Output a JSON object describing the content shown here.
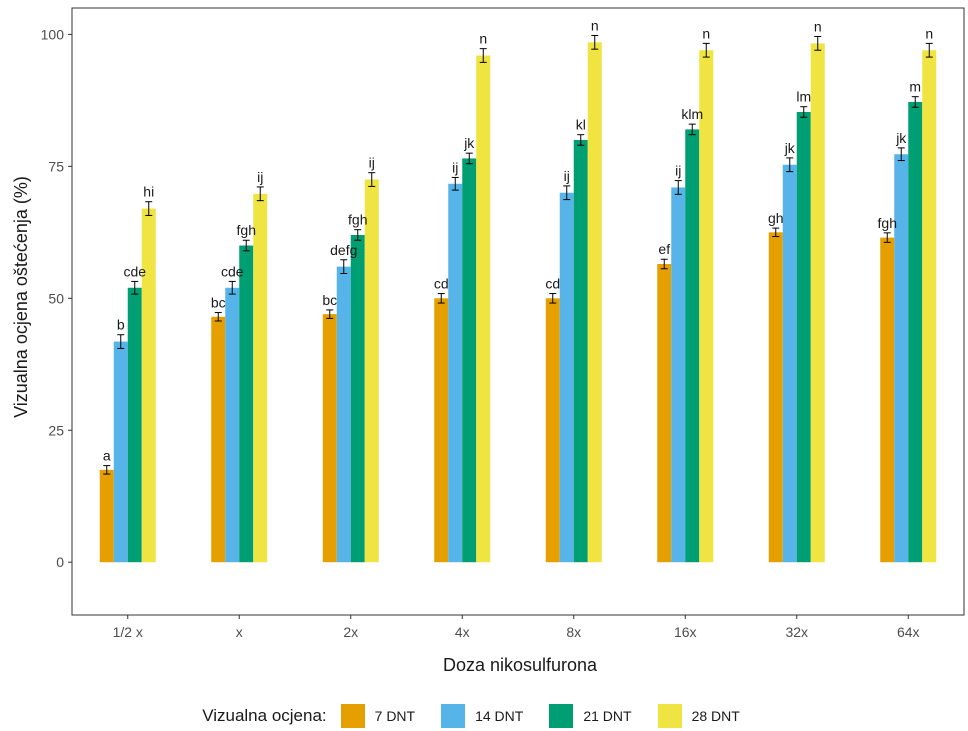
{
  "chart_data": {
    "type": "bar",
    "xlabel": "Doza nikosulfurona",
    "ylabel": "Vizualna ocjena oštećenja (%)",
    "ylim": [
      -10,
      105
    ],
    "yticks": [
      0,
      25,
      50,
      75,
      100
    ],
    "grid": false,
    "legend_position": "bottom",
    "legend_title": "Vizualna ocjena:",
    "categories": [
      "1/2 x",
      "x",
      "2x",
      "4x",
      "8x",
      "16x",
      "32x",
      "64x"
    ],
    "series": [
      {
        "name": "7 DNT",
        "color": "#E69F00",
        "values": [
          17.5,
          46.5,
          47,
          50,
          50,
          56.5,
          62.5,
          61.5
        ],
        "errors": [
          0.8,
          0.8,
          0.8,
          0.9,
          0.9,
          0.9,
          0.8,
          0.9
        ],
        "labels": [
          "a",
          "bc",
          "bc",
          "cd",
          "cd",
          "ef",
          "gh",
          "fgh"
        ]
      },
      {
        "name": "14 DNT",
        "color": "#56B4E9",
        "values": [
          41.8,
          52,
          56,
          71.7,
          70,
          71,
          75.3,
          77.3
        ],
        "errors": [
          1.3,
          1.2,
          1.3,
          1.2,
          1.3,
          1.3,
          1.3,
          1.2
        ],
        "labels": [
          "b",
          "cde",
          "defg",
          "ij",
          "ij",
          "ij",
          "jk",
          "jk"
        ]
      },
      {
        "name": "21 DNT",
        "color": "#009E73",
        "values": [
          52,
          60,
          62,
          76.5,
          80,
          82,
          85.3,
          87.2
        ],
        "errors": [
          1.2,
          1.0,
          1.0,
          1.0,
          1.0,
          1.0,
          1.0,
          1.0
        ],
        "labels": [
          "cde",
          "fgh",
          "fgh",
          "jk",
          "kl",
          "klm",
          "lm",
          "m"
        ]
      },
      {
        "name": "28 DNT",
        "color": "#F0E442",
        "values": [
          67,
          69.8,
          72.5,
          96,
          98.5,
          97,
          98.3,
          97
        ],
        "errors": [
          1.3,
          1.3,
          1.3,
          1.3,
          1.3,
          1.3,
          1.3,
          1.3
        ],
        "labels": [
          "hi",
          "ij",
          "ij",
          "n",
          "n",
          "n",
          "n",
          "n"
        ]
      }
    ]
  }
}
